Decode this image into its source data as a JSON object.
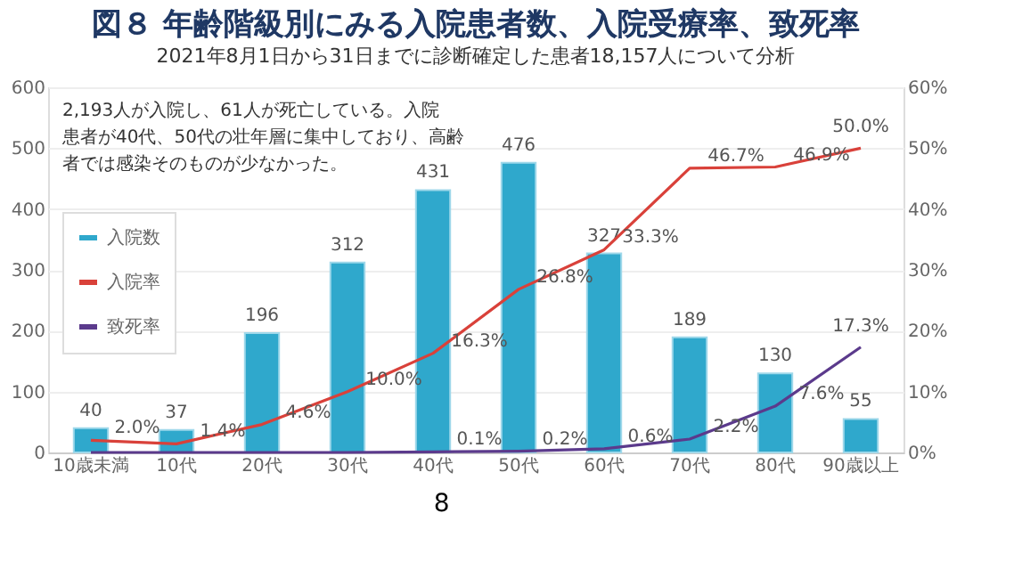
{
  "chart_data": {
    "type": "bar",
    "title": "図８ 年齢階級別にみる入院患者数、入院受療率、致死率",
    "subtitle": "2021年8月1日から31日までに診断確定した患者18,157人について分析",
    "categories": [
      "10歳未満",
      "10代",
      "20代",
      "30代",
      "40代",
      "50代",
      "60代",
      "70代",
      "80代",
      "90歳以上"
    ],
    "series": [
      {
        "name": "入院数",
        "color": "#2fa8cc",
        "values": [
          40,
          37,
          196,
          312,
          431,
          476,
          327,
          189,
          130,
          55
        ]
      },
      {
        "name": "入院率",
        "type": "line",
        "axis": "y2",
        "color": "#d9413a",
        "values": [
          2.0,
          1.4,
          4.6,
          10.0,
          16.3,
          26.8,
          33.3,
          46.7,
          46.9,
          50.0
        ],
        "value_labels": [
          "2.0%",
          "1.4%",
          "4.6%",
          "10.0%",
          "16.3%",
          "26.8%",
          "33.3%",
          "46.7%",
          "46.9%",
          "50.0%"
        ]
      },
      {
        "name": "致死率",
        "type": "line",
        "axis": "y2",
        "color": "#5b3a8c",
        "values": [
          0,
          0,
          0,
          0,
          0.1,
          0.2,
          0.6,
          2.2,
          7.6,
          17.3
        ],
        "value_labels": [
          null,
          null,
          null,
          null,
          "0.1%",
          "0.2%",
          "0.6%",
          "2.2%",
          "7.6%",
          "17.3%"
        ]
      }
    ],
    "data_labels": true,
    "ylim": [
      0,
      600
    ],
    "yticks": [
      0,
      100,
      200,
      300,
      400,
      500,
      600
    ],
    "y2lim": [
      0,
      60
    ],
    "y2ticks": [
      {
        "value": 0,
        "label": "0%"
      },
      {
        "value": 10,
        "label": "10%"
      },
      {
        "value": 20,
        "label": "20%"
      },
      {
        "value": 30,
        "label": "30%"
      },
      {
        "value": 40,
        "label": "40%"
      },
      {
        "value": 50,
        "label": "50%"
      },
      {
        "value": 60,
        "label": "60%"
      }
    ],
    "grid": "y",
    "legend": "left",
    "marker": "none",
    "line_style": "solid",
    "annotations": [
      "2,193人が入院し、61人が死亡している。入院患者が40代、50代の壮年層に集中しており、高齢者では感染そのものが少なかった。",
      "8"
    ]
  }
}
